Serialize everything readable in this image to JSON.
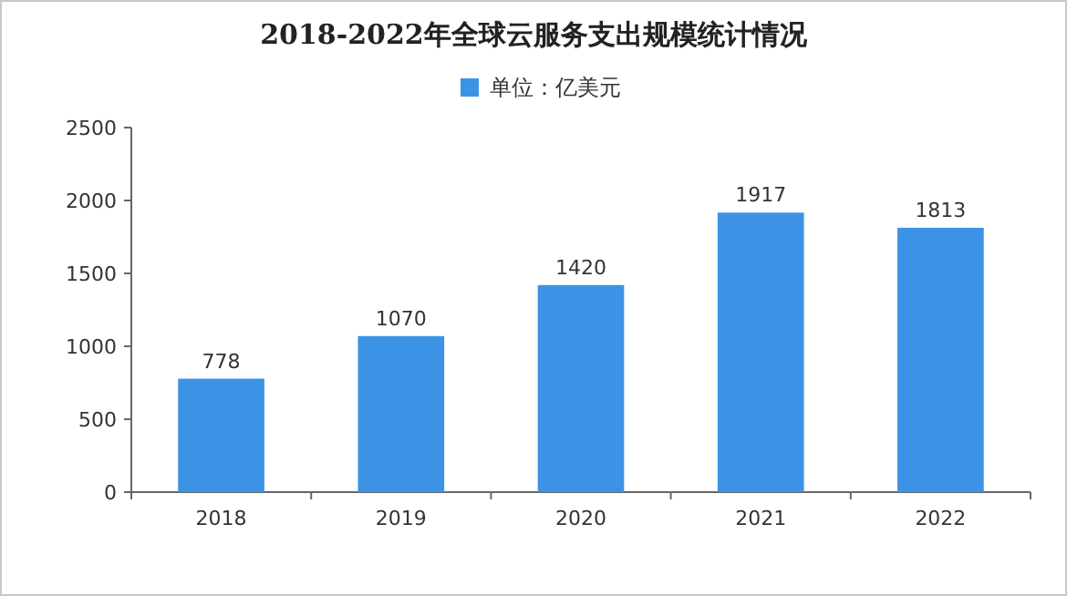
{
  "chart_data": {
    "type": "bar",
    "title": "2018-2022年全球云服务支出规模统计情况",
    "categories": [
      "2018",
      "2019",
      "2020",
      "2021",
      "2022"
    ],
    "series": [
      {
        "name": "单位：亿美元",
        "color": "#3c93e6",
        "values": [
          778,
          1070,
          1420,
          1917,
          1813
        ]
      }
    ],
    "ylim": [
      0,
      2500
    ],
    "yticks": [
      0,
      500,
      1000,
      1500,
      2000,
      2500
    ],
    "data_labels": true,
    "legend": "top",
    "grid": false
  }
}
